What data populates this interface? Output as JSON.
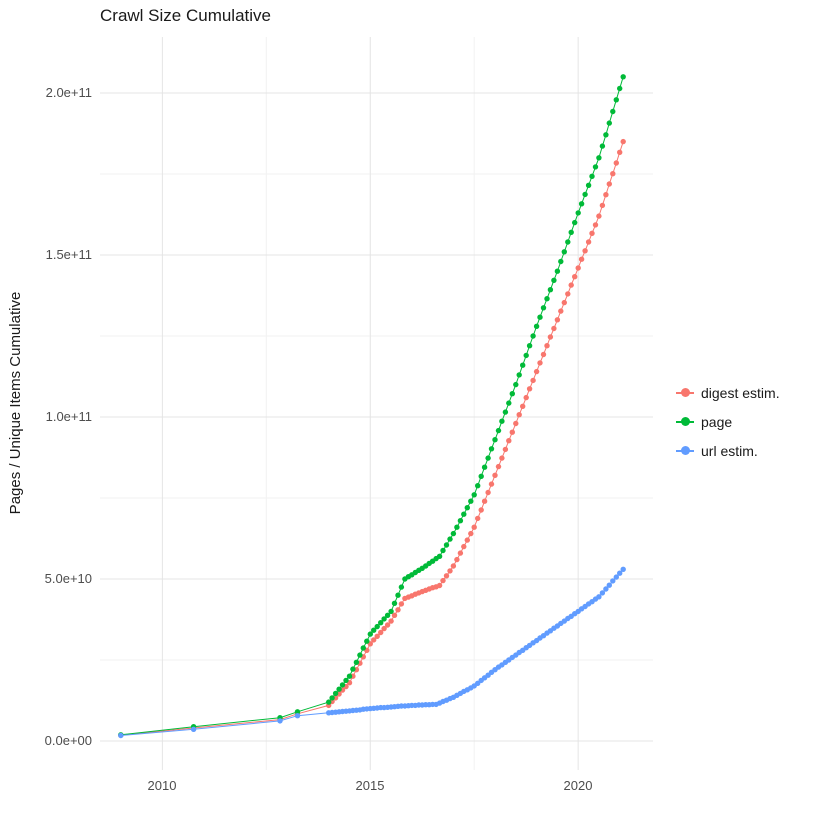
{
  "title": "Crawl Size Cumulative",
  "chart_data": {
    "type": "scatter",
    "title": "Crawl Size Cumulative",
    "xlabel": "",
    "ylabel": "Pages / Unique Items Cumulative",
    "grid": true,
    "legend_position": "right",
    "xlim": [
      2008.5,
      2021.8
    ],
    "ylim": [
      0,
      217000000000.0
    ],
    "y_unit_note": "series values are in billions (1e9)",
    "x_ticks": {
      "values": [
        2010,
        2015,
        2020
      ],
      "labels": [
        "2010",
        "2015",
        "2020"
      ]
    },
    "y_ticks": {
      "values_e9": [
        0,
        50,
        100,
        150,
        200
      ],
      "labels": [
        "0.0e+00",
        "5.0e+10",
        "1.0e+11",
        "1.5e+11",
        "2.0e+11"
      ]
    },
    "x_minor": [
      2012.5,
      2017.5
    ],
    "y_minor_e9": [
      25,
      75,
      125,
      175
    ],
    "x": [
      2009.0,
      2010.75,
      2012.83,
      2013.25,
      2014.0,
      2014.083,
      2014.167,
      2014.25,
      2014.333,
      2014.417,
      2014.5,
      2014.583,
      2014.667,
      2014.75,
      2014.833,
      2014.917,
      2015.0,
      2015.083,
      2015.167,
      2015.25,
      2015.333,
      2015.417,
      2015.5,
      2015.583,
      2015.667,
      2015.75,
      2015.833,
      2015.917,
      2016.0,
      2016.083,
      2016.167,
      2016.25,
      2016.333,
      2016.417,
      2016.5,
      2016.583,
      2016.667,
      2016.75,
      2016.833,
      2016.917,
      2017.0,
      2017.083,
      2017.167,
      2017.25,
      2017.333,
      2017.417,
      2017.5,
      2017.583,
      2017.667,
      2017.75,
      2017.833,
      2017.917,
      2018.0,
      2018.083,
      2018.167,
      2018.25,
      2018.333,
      2018.417,
      2018.5,
      2018.583,
      2018.667,
      2018.75,
      2018.833,
      2018.917,
      2019.0,
      2019.083,
      2019.167,
      2019.25,
      2019.333,
      2019.417,
      2019.5,
      2019.583,
      2019.667,
      2019.75,
      2019.833,
      2019.917,
      2020.0,
      2020.083,
      2020.167,
      2020.25,
      2020.333,
      2020.417,
      2020.5,
      2020.583,
      2020.667,
      2020.75,
      2020.833,
      2020.917,
      2021.0,
      2021.083
    ],
    "series": [
      {
        "name": "digest estim.",
        "color": "#F8766D",
        "values_e9": [
          1.8,
          4.0,
          6.6,
          8.4,
          11.0,
          12.2,
          13.3,
          14.5,
          15.7,
          16.8,
          18.0,
          20.0,
          22.0,
          24.0,
          26.0,
          28.0,
          30.0,
          31.2,
          32.3,
          33.5,
          34.7,
          35.8,
          37.0,
          38.8,
          40.5,
          42.3,
          44.0,
          44.4,
          44.8,
          45.3,
          45.7,
          46.1,
          46.5,
          46.9,
          47.3,
          47.6,
          48.0,
          49.5,
          51.0,
          52.5,
          54.0,
          56.0,
          58.0,
          60.0,
          62.0,
          64.0,
          66.0,
          68.7,
          71.3,
          74.0,
          76.7,
          79.3,
          82.0,
          84.7,
          87.3,
          90.0,
          92.7,
          95.3,
          98.0,
          100.7,
          103.3,
          106.0,
          108.7,
          111.3,
          114.0,
          116.7,
          119.3,
          122.0,
          124.7,
          127.3,
          130.0,
          132.7,
          135.3,
          138.0,
          140.7,
          143.3,
          146.0,
          148.7,
          151.3,
          154.0,
          156.7,
          159.3,
          162.0,
          165.3,
          168.6,
          171.9,
          175.1,
          178.4,
          181.7,
          185.0
        ]
      },
      {
        "name": "page",
        "color": "#00BA38",
        "values_e9": [
          1.9,
          4.4,
          7.2,
          9.0,
          12.0,
          13.3,
          14.7,
          16.0,
          17.3,
          18.7,
          20.0,
          22.2,
          24.3,
          26.5,
          28.7,
          30.8,
          33.0,
          34.2,
          35.3,
          36.5,
          37.7,
          38.8,
          40.0,
          42.5,
          45.0,
          47.5,
          50.0,
          50.7,
          51.3,
          52.0,
          52.7,
          53.3,
          54.0,
          54.8,
          55.5,
          56.3,
          57.0,
          58.8,
          60.5,
          62.3,
          64.0,
          66.0,
          68.0,
          70.0,
          72.0,
          74.0,
          76.0,
          78.8,
          81.7,
          84.5,
          87.3,
          90.2,
          93.0,
          95.8,
          98.7,
          101.5,
          104.3,
          107.2,
          110.0,
          113.0,
          116.0,
          119.0,
          122.0,
          125.0,
          128.0,
          130.8,
          133.7,
          136.5,
          139.3,
          142.2,
          145.0,
          148.0,
          151.0,
          154.0,
          157.0,
          160.0,
          163.0,
          165.8,
          168.7,
          171.5,
          174.3,
          177.2,
          180.0,
          183.6,
          187.1,
          190.7,
          194.3,
          197.9,
          201.4,
          205.0
        ]
      },
      {
        "name": "url estim.",
        "color": "#619CFF",
        "values_e9": [
          1.7,
          3.6,
          6.2,
          7.8,
          8.7,
          8.8,
          8.9,
          9.0,
          9.1,
          9.2,
          9.3,
          9.4,
          9.5,
          9.6,
          9.8,
          9.9,
          10.0,
          10.1,
          10.2,
          10.3,
          10.3,
          10.4,
          10.5,
          10.6,
          10.7,
          10.8,
          10.8,
          10.9,
          11.0,
          11.0,
          11.1,
          11.1,
          11.2,
          11.2,
          11.3,
          11.3,
          11.7,
          12.2,
          12.6,
          13.1,
          13.5,
          14.1,
          14.7,
          15.3,
          15.8,
          16.4,
          17.0,
          17.8,
          18.7,
          19.5,
          20.3,
          21.2,
          22.0,
          22.8,
          23.5,
          24.3,
          25.0,
          25.8,
          26.5,
          27.3,
          28.0,
          28.8,
          29.5,
          30.3,
          31.0,
          31.8,
          32.5,
          33.3,
          34.0,
          34.8,
          35.5,
          36.3,
          37.0,
          37.8,
          38.5,
          39.3,
          40.0,
          40.8,
          41.5,
          42.3,
          43.0,
          43.8,
          44.5,
          45.7,
          46.9,
          48.1,
          49.4,
          50.6,
          51.8,
          53.0
        ]
      }
    ]
  }
}
